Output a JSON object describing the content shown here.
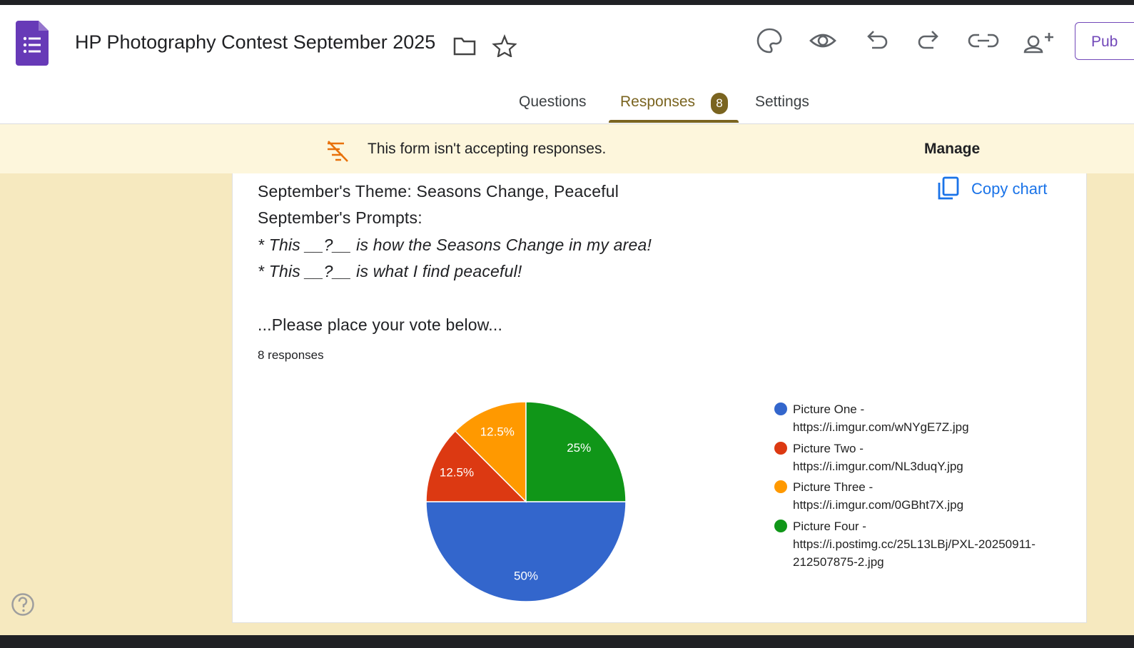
{
  "header": {
    "title": "HP Photography Contest September 2025",
    "publish": "Pub"
  },
  "tabs": [
    "Questions",
    "Responses",
    "Settings"
  ],
  "responses_badge": "8",
  "banner": {
    "message": "This form isn't accepting responses.",
    "action": "Manage"
  },
  "card": {
    "copy_chart": "Copy chart",
    "description": [
      "September's Theme: Seasons Change, Peaceful",
      "September's Prompts:",
      "* This __?__ is how the Seasons Change in my area!",
      "* This __?__ is what I find peaceful!",
      "...Please place your vote below..."
    ],
    "response_count": "8 responses"
  },
  "chart_data": {
    "type": "pie",
    "categories": [
      "Picture One - https://i.imgur.com/wNYgE7Z.jpg",
      "Picture Two - https://i.imgur.com/NL3duqY.jpg",
      "Picture Three - https://i.imgur.com/0GBht7X.jpg",
      "Picture Four - https://i.postimg.cc/25L13LBj/PXL-20250911-212507875-2.jpg"
    ],
    "values": [
      50,
      12.5,
      12.5,
      25
    ],
    "value_labels": [
      "50%",
      "12.5%",
      "12.5%",
      "25%"
    ],
    "colors": [
      "#3366cc",
      "#dc3912",
      "#ff9900",
      "#109618"
    ],
    "legend": "right"
  }
}
